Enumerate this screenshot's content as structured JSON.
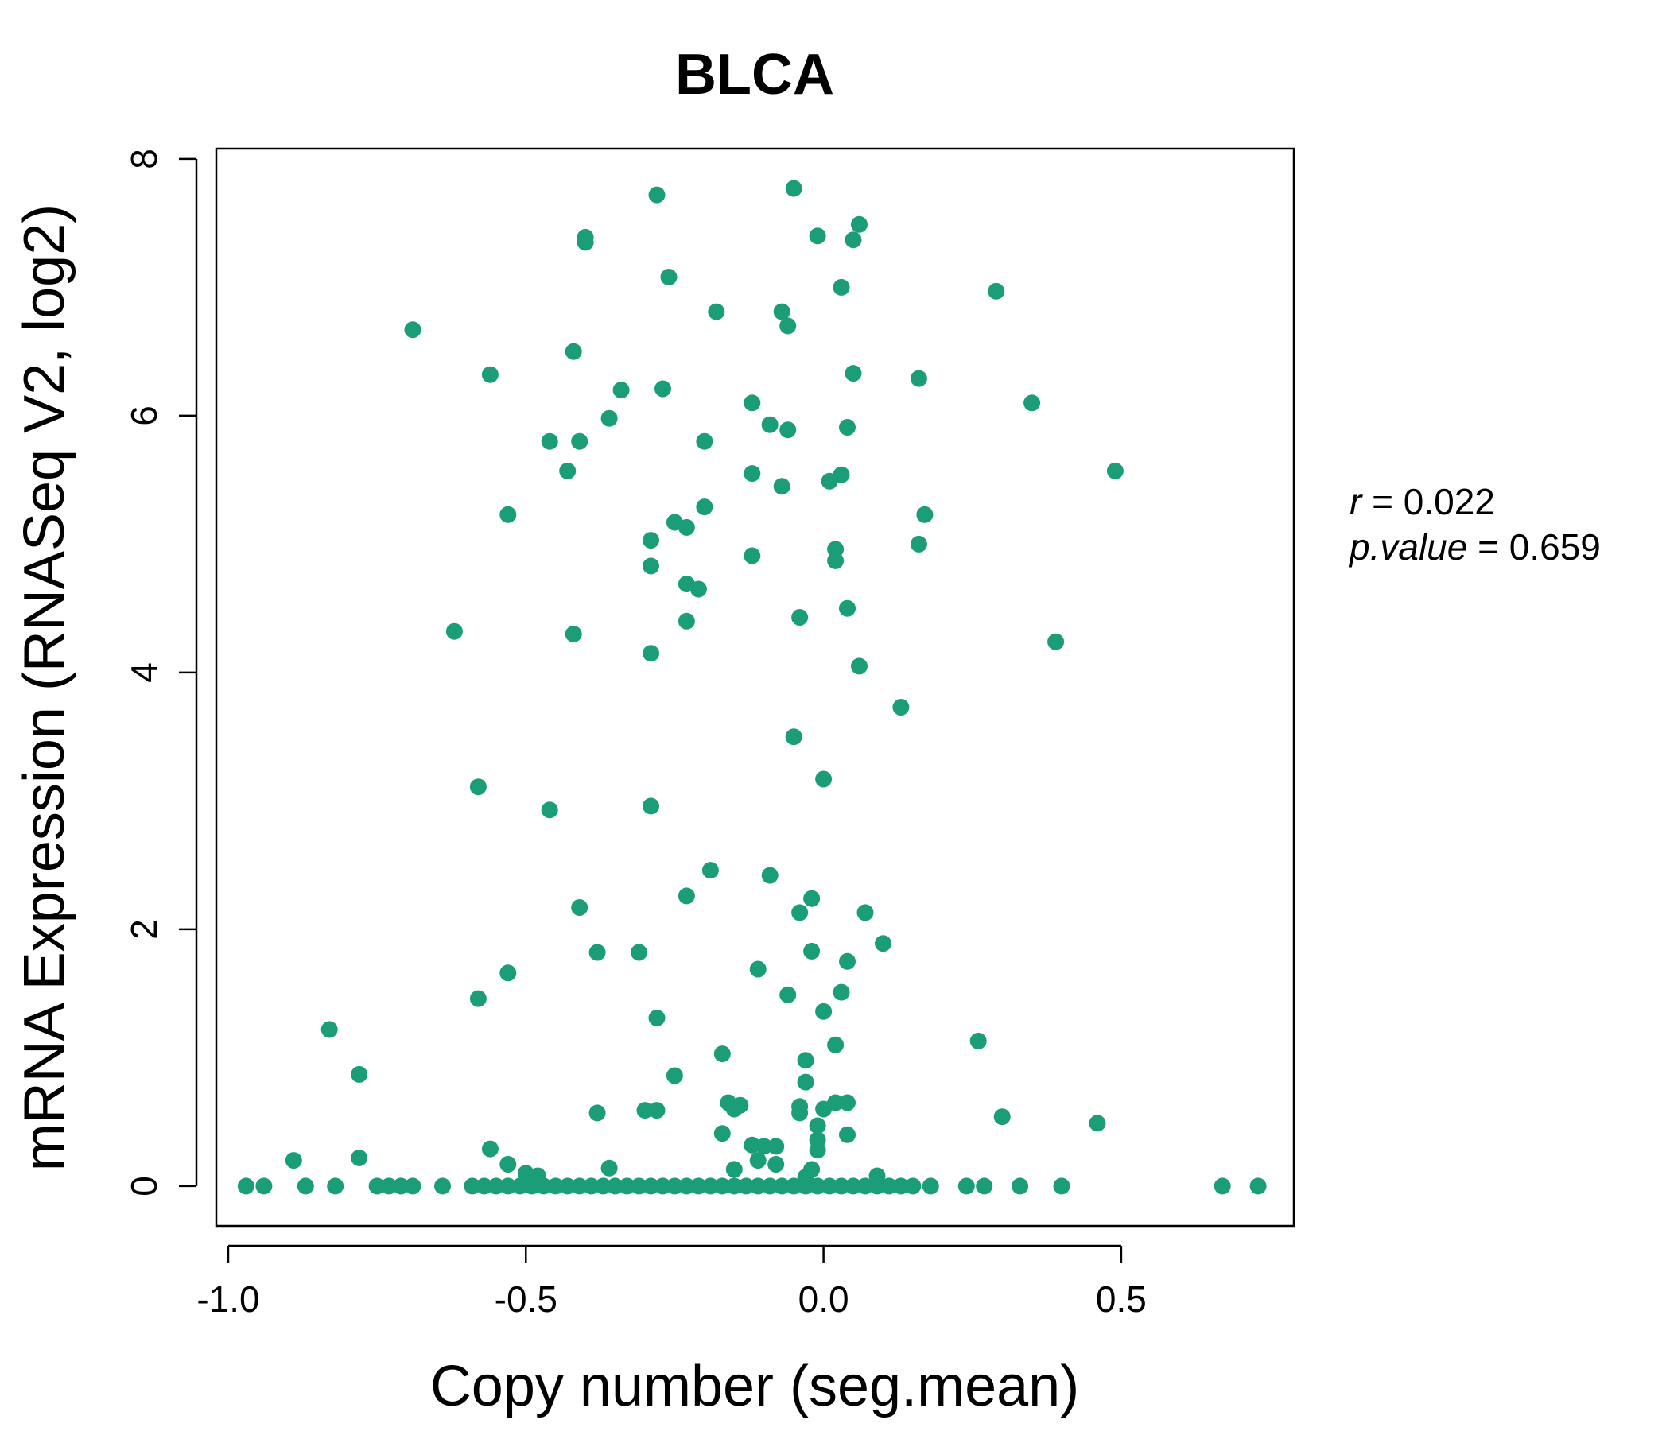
{
  "chart_data": {
    "type": "scatter",
    "title": "BLCA",
    "xlabel": "Copy number (seg.mean)",
    "ylabel": "mRNA Expression (RNASeq V2, log2)",
    "xlim": [
      -1.02,
      0.79
    ],
    "ylim": [
      -0.31,
      8.08
    ],
    "xticks": [
      -1.0,
      -0.5,
      0.0,
      0.5
    ],
    "xtick_labels": [
      "-1.0",
      "-0.5",
      "0.0",
      "0.5"
    ],
    "yticks": [
      0,
      2,
      4,
      6,
      8
    ],
    "ytick_labels": [
      "0",
      "2",
      "4",
      "6",
      "8"
    ],
    "grid": false,
    "colors": {
      "points": "#1b9e77",
      "title": "#1b9e77",
      "axis": "#000000"
    },
    "stats": {
      "r_label": "r",
      "r_value": "0.022",
      "p_label": "p.value",
      "p_value": "0.659"
    },
    "series": [
      {
        "points": [
          [
            -0.28,
            7.72
          ],
          [
            -0.05,
            7.77
          ],
          [
            -0.4,
            7.39
          ],
          [
            -0.4,
            7.35
          ],
          [
            -0.01,
            7.4
          ],
          [
            0.06,
            7.49
          ],
          [
            0.05,
            7.37
          ],
          [
            -0.26,
            7.08
          ],
          [
            0.03,
            7.0
          ],
          [
            0.29,
            6.97
          ],
          [
            -0.69,
            6.67
          ],
          [
            -0.18,
            6.81
          ],
          [
            -0.07,
            6.81
          ],
          [
            -0.06,
            6.7
          ],
          [
            -0.42,
            6.5
          ],
          [
            -0.56,
            6.32
          ],
          [
            0.05,
            6.33
          ],
          [
            0.16,
            6.29
          ],
          [
            -0.34,
            6.2
          ],
          [
            -0.27,
            6.21
          ],
          [
            -0.12,
            6.1
          ],
          [
            0.35,
            6.1
          ],
          [
            -0.36,
            5.98
          ],
          [
            -0.09,
            5.93
          ],
          [
            -0.06,
            5.89
          ],
          [
            0.04,
            5.91
          ],
          [
            -0.46,
            5.8
          ],
          [
            -0.41,
            5.8
          ],
          [
            -0.2,
            5.8
          ],
          [
            -0.43,
            5.57
          ],
          [
            -0.12,
            5.55
          ],
          [
            0.03,
            5.54
          ],
          [
            0.01,
            5.49
          ],
          [
            -0.07,
            5.45
          ],
          [
            0.49,
            5.57
          ],
          [
            -0.53,
            5.23
          ],
          [
            -0.2,
            5.29
          ],
          [
            0.17,
            5.23
          ],
          [
            -0.25,
            5.17
          ],
          [
            -0.23,
            5.13
          ],
          [
            -0.29,
            5.03
          ],
          [
            0.02,
            4.96
          ],
          [
            0.16,
            5.0
          ],
          [
            -0.12,
            4.91
          ],
          [
            0.02,
            4.87
          ],
          [
            -0.29,
            4.83
          ],
          [
            -0.23,
            4.69
          ],
          [
            -0.21,
            4.65
          ],
          [
            0.04,
            4.5
          ],
          [
            -0.04,
            4.43
          ],
          [
            -0.23,
            4.4
          ],
          [
            -0.62,
            4.32
          ],
          [
            -0.42,
            4.3
          ],
          [
            0.39,
            4.24
          ],
          [
            -0.29,
            4.15
          ],
          [
            0.06,
            4.05
          ],
          [
            0.13,
            3.73
          ],
          [
            -0.05,
            3.5
          ],
          [
            0.0,
            3.17
          ],
          [
            -0.58,
            3.11
          ],
          [
            -0.46,
            2.93
          ],
          [
            -0.29,
            2.96
          ],
          [
            -0.19,
            2.46
          ],
          [
            -0.09,
            2.42
          ],
          [
            -0.23,
            2.26
          ],
          [
            -0.02,
            2.24
          ],
          [
            -0.41,
            2.17
          ],
          [
            -0.04,
            2.13
          ],
          [
            0.07,
            2.13
          ],
          [
            0.1,
            1.89
          ],
          [
            -0.38,
            1.82
          ],
          [
            -0.31,
            1.82
          ],
          [
            -0.02,
            1.83
          ],
          [
            0.04,
            1.75
          ],
          [
            -0.11,
            1.69
          ],
          [
            -0.53,
            1.66
          ],
          [
            -0.58,
            1.46
          ],
          [
            -0.06,
            1.49
          ],
          [
            0.03,
            1.51
          ],
          [
            0.0,
            1.36
          ],
          [
            -0.28,
            1.31
          ],
          [
            -0.83,
            1.22
          ],
          [
            0.26,
            1.13
          ],
          [
            0.02,
            1.1
          ],
          [
            -0.17,
            1.03
          ],
          [
            -0.03,
            0.98
          ],
          [
            -0.78,
            0.87
          ],
          [
            -0.25,
            0.86
          ],
          [
            -0.03,
            0.81
          ],
          [
            -0.16,
            0.65
          ],
          [
            -0.14,
            0.63
          ],
          [
            0.04,
            0.65
          ],
          [
            -0.15,
            0.6
          ],
          [
            -0.04,
            0.62
          ],
          [
            0.0,
            0.6
          ],
          [
            0.02,
            0.65
          ],
          [
            -0.38,
            0.57
          ],
          [
            -0.3,
            0.59
          ],
          [
            -0.28,
            0.59
          ],
          [
            -0.04,
            0.57
          ],
          [
            0.3,
            0.54
          ],
          [
            0.46,
            0.49
          ],
          [
            -0.01,
            0.47
          ],
          [
            -0.17,
            0.41
          ],
          [
            -0.01,
            0.36
          ],
          [
            0.04,
            0.4
          ],
          [
            -0.56,
            0.29
          ],
          [
            -0.12,
            0.32
          ],
          [
            -0.1,
            0.31
          ],
          [
            -0.08,
            0.31
          ],
          [
            -0.01,
            0.28
          ],
          [
            -0.89,
            0.2
          ],
          [
            -0.78,
            0.22
          ],
          [
            -0.11,
            0.2
          ],
          [
            -0.08,
            0.17
          ],
          [
            -0.53,
            0.17
          ],
          [
            -0.36,
            0.14
          ],
          [
            -0.15,
            0.13
          ],
          [
            -0.02,
            0.13
          ],
          [
            -0.5,
            0.1
          ],
          [
            -0.48,
            0.08
          ],
          [
            -0.03,
            0.07
          ],
          [
            0.09,
            0.08
          ],
          [
            -0.97,
            0
          ],
          [
            -0.94,
            0
          ],
          [
            -0.87,
            0
          ],
          [
            -0.82,
            0
          ],
          [
            -0.75,
            0
          ],
          [
            -0.73,
            0
          ],
          [
            -0.71,
            0
          ],
          [
            -0.69,
            0
          ],
          [
            -0.64,
            0
          ],
          [
            -0.59,
            0
          ],
          [
            -0.57,
            0
          ],
          [
            -0.55,
            0
          ],
          [
            -0.53,
            0
          ],
          [
            -0.51,
            0
          ],
          [
            -0.49,
            0
          ],
          [
            -0.47,
            0
          ],
          [
            -0.45,
            0
          ],
          [
            -0.43,
            0
          ],
          [
            -0.41,
            0
          ],
          [
            -0.39,
            0
          ],
          [
            -0.37,
            0
          ],
          [
            -0.35,
            0
          ],
          [
            -0.33,
            0
          ],
          [
            -0.31,
            0
          ],
          [
            -0.29,
            0
          ],
          [
            -0.27,
            0
          ],
          [
            -0.25,
            0
          ],
          [
            -0.23,
            0
          ],
          [
            -0.21,
            0
          ],
          [
            -0.19,
            0
          ],
          [
            -0.17,
            0
          ],
          [
            -0.15,
            0
          ],
          [
            -0.13,
            0
          ],
          [
            -0.11,
            0
          ],
          [
            -0.09,
            0
          ],
          [
            -0.07,
            0
          ],
          [
            -0.05,
            0
          ],
          [
            -0.03,
            0
          ],
          [
            -0.01,
            0
          ],
          [
            0.01,
            0
          ],
          [
            0.03,
            0
          ],
          [
            0.05,
            0
          ],
          [
            0.07,
            0
          ],
          [
            0.09,
            0
          ],
          [
            0.11,
            0
          ],
          [
            0.13,
            0
          ],
          [
            0.15,
            0
          ],
          [
            0.18,
            0
          ],
          [
            0.24,
            0
          ],
          [
            0.27,
            0
          ],
          [
            0.33,
            0
          ],
          [
            0.4,
            0
          ],
          [
            0.67,
            0
          ],
          [
            0.73,
            0
          ]
        ]
      }
    ]
  }
}
